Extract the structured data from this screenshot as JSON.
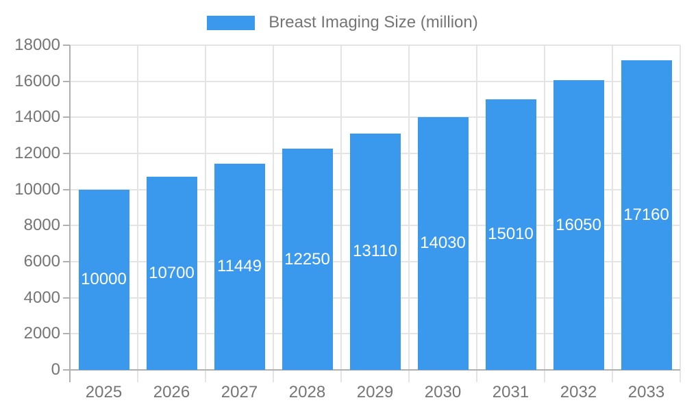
{
  "chart_data": {
    "type": "bar",
    "title": "Breast Imaging Size (million)",
    "legend": [
      "Breast Imaging Size (million)"
    ],
    "legend_position": "top",
    "categories": [
      "2025",
      "2026",
      "2027",
      "2028",
      "2029",
      "2030",
      "2031",
      "2032",
      "2033"
    ],
    "series": [
      {
        "name": "Breast Imaging Size (million)",
        "values": [
          10000,
          10700,
          11449,
          12250,
          13110,
          14030,
          15010,
          16050,
          17160
        ]
      }
    ],
    "value_labels": [
      "10000",
      "10700",
      "11449",
      "12250",
      "13110",
      "14030",
      "15010",
      "16050",
      "17160"
    ],
    "xlabel": "",
    "ylabel": "",
    "ylim": [
      0,
      18000
    ],
    "yticks": [
      0,
      2000,
      4000,
      6000,
      8000,
      10000,
      12000,
      14000,
      16000,
      18000
    ],
    "grid": true,
    "colors": {
      "bar": "#3b99ed",
      "grid": "#e4e4e4",
      "axis": "#b0b0b0",
      "text": "#757575",
      "value_label": "#ffffff",
      "background": "#ffffff"
    }
  }
}
